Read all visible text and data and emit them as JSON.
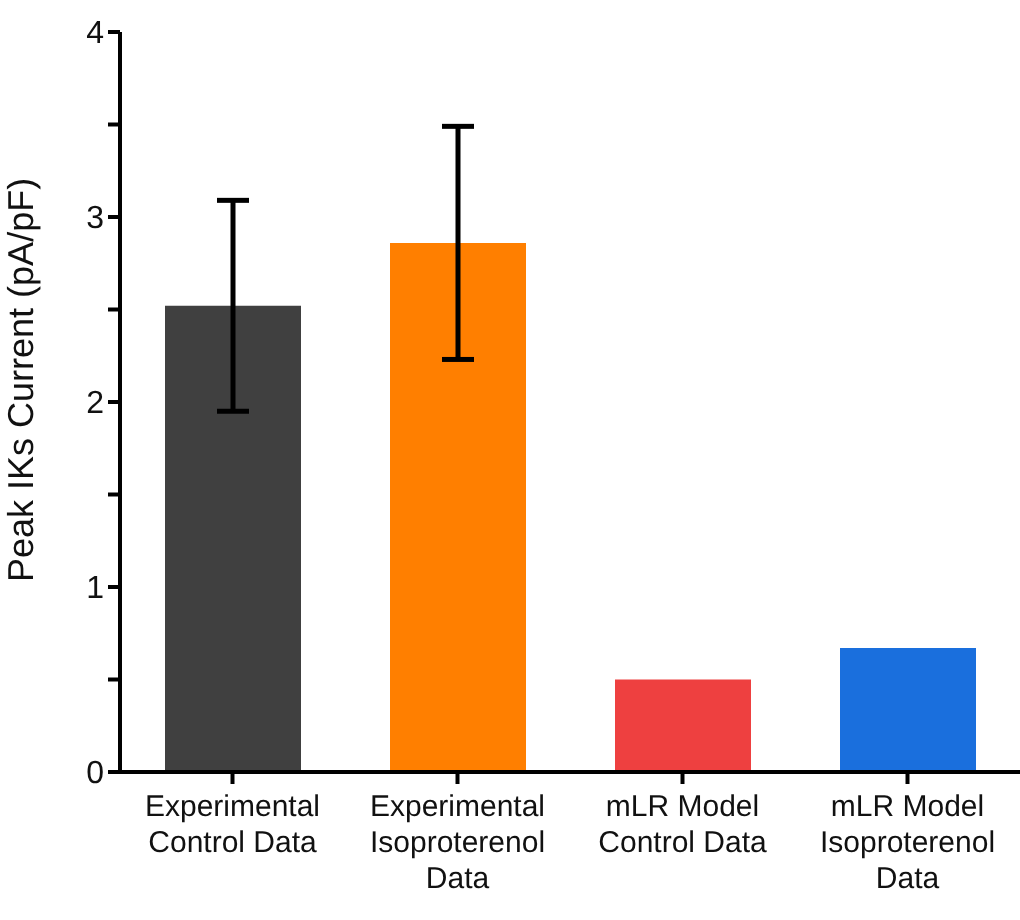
{
  "chart_data": {
    "type": "bar",
    "ylabel": "Peak IKs Current (pA/pF)",
    "categories": [
      "Experimental Control Data",
      "Experimental Isoproterenol Data",
      "mLR Model Control Data",
      "mLR Model Isoproterenol Data"
    ],
    "values": [
      2.52,
      2.86,
      0.5,
      0.67
    ],
    "colors": [
      "#404040",
      "#ff7f00",
      "#ee4040",
      "#1a6fdd"
    ],
    "errors": [
      [
        1.95,
        3.09
      ],
      [
        2.23,
        3.49
      ],
      null,
      null
    ],
    "ylim": [
      0,
      4
    ],
    "yticks": [
      0,
      {
        "value": 0.5,
        "label": null
      },
      1,
      {
        "value": 1.5,
        "label": null
      },
      2,
      {
        "value": 2.5,
        "label": null
      },
      3,
      {
        "value": 3.5,
        "label": null
      },
      4
    ],
    "grid": false
  }
}
